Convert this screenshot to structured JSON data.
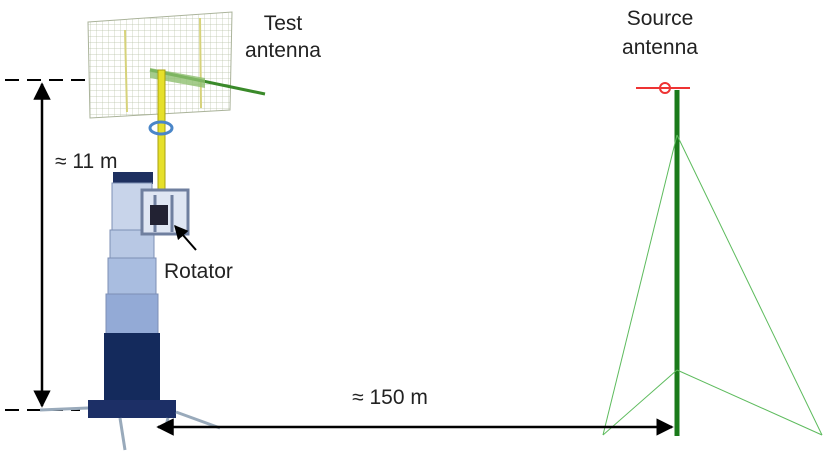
{
  "labels": {
    "test_antenna": [
      "Test",
      "antenna"
    ],
    "source_antenna": [
      "Source",
      "antenna"
    ],
    "height": "≈ 11 m",
    "rotator": "Rotator",
    "distance": "≈ 150 m"
  }
}
